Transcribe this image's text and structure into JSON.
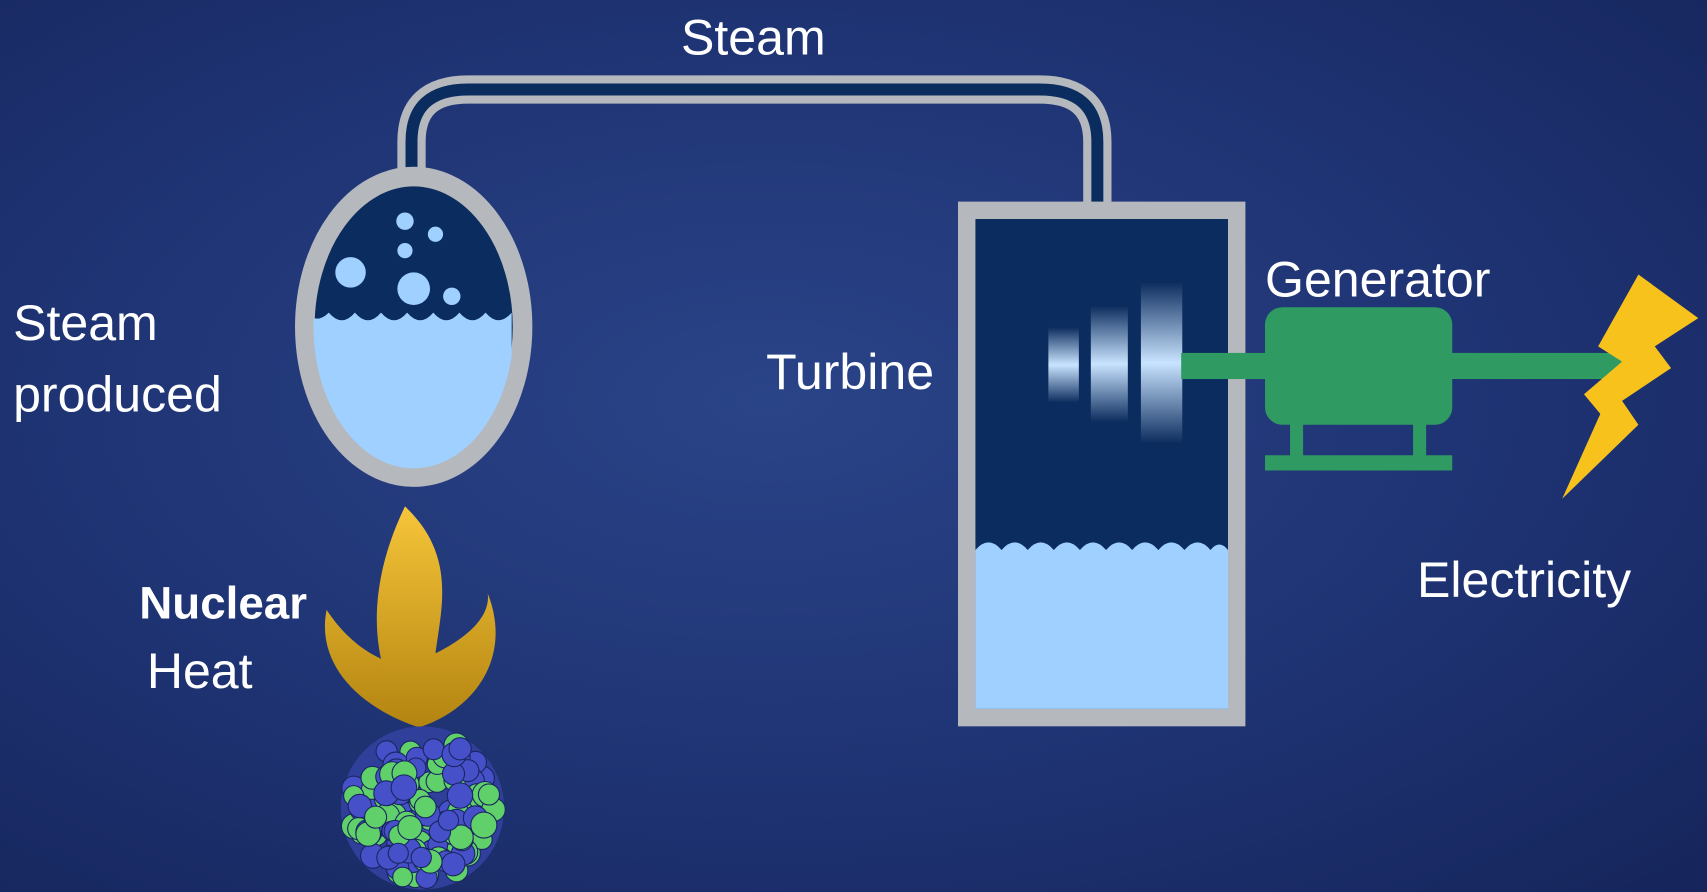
{
  "labels": {
    "steam": "Steam",
    "steam_produced": [
      "Steam",
      "produced"
    ],
    "nuclear_heat": [
      "Nuclear",
      "Heat"
    ],
    "turbine": "Turbine",
    "generator": "Generator",
    "electricity": "Electricity"
  }
}
